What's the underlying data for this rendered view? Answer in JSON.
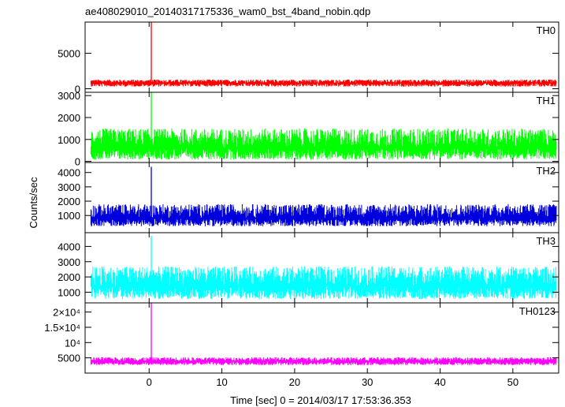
{
  "chart_data": {
    "type": "line",
    "title": "ae408029010_20140317175336_wam0_bst_4band_nobin.qdp",
    "xlabel": "Time [sec] 0 = 2014/03/17 17:53:36.353",
    "ylabel": "Counts/sec",
    "xlim": [
      -8.8,
      56.3
    ],
    "x_ticks": [
      0,
      10,
      20,
      30,
      40,
      50
    ],
    "grid": false,
    "panels": [
      {
        "name": "TH0",
        "color": "#ff0000",
        "ylim": [
          -500,
          9400
        ],
        "y_ticks": [
          0,
          5000
        ],
        "y_tick_labels": [
          "0",
          "5000"
        ],
        "baseline": 800,
        "noise_low": 300,
        "noise_high": 1300,
        "spike": {
          "x": 0.3,
          "y": 9400
        }
      },
      {
        "name": "TH1",
        "color": "#00ff00",
        "ylim": [
          -50,
          3150
        ],
        "y_ticks": [
          0,
          1000,
          2000,
          3000
        ],
        "y_tick_labels": [
          "0",
          "1000",
          "2000",
          "3000"
        ],
        "baseline": 600,
        "noise_low": 80,
        "noise_high": 1500,
        "spike": {
          "x": 0.3,
          "y": 3150
        }
      },
      {
        "name": "TH2",
        "color": "#0000dd",
        "ylim": [
          -200,
          4700
        ],
        "y_ticks": [
          1000,
          2000,
          3000,
          4000
        ],
        "y_tick_labels": [
          "1000",
          "2000",
          "3000",
          "4000"
        ],
        "baseline": 800,
        "noise_low": 250,
        "noise_high": 1800,
        "spike": {
          "x": 0.3,
          "y": 4400
        }
      },
      {
        "name": "TH3",
        "color": "#00ffff",
        "ylim": [
          300,
          4900
        ],
        "y_ticks": [
          1000,
          2000,
          3000,
          4000
        ],
        "y_tick_labels": [
          "1000",
          "2000",
          "3000",
          "4000"
        ],
        "baseline": 1400,
        "noise_low": 550,
        "noise_high": 2700,
        "spike": {
          "x": 0.3,
          "y": 4700
        }
      },
      {
        "name": "TH0123",
        "color": "#ff00ff",
        "ylim": [
          0,
          23000
        ],
        "y_ticks": [
          5000,
          10000,
          15000,
          20000
        ],
        "y_tick_labels": [
          "5000",
          "10⁴",
          "1.5×10⁴",
          "2×10⁴"
        ],
        "baseline": 3800,
        "noise_low": 2600,
        "noise_high": 5200,
        "spike": {
          "x": 0.3,
          "y": 23000
        }
      }
    ]
  }
}
